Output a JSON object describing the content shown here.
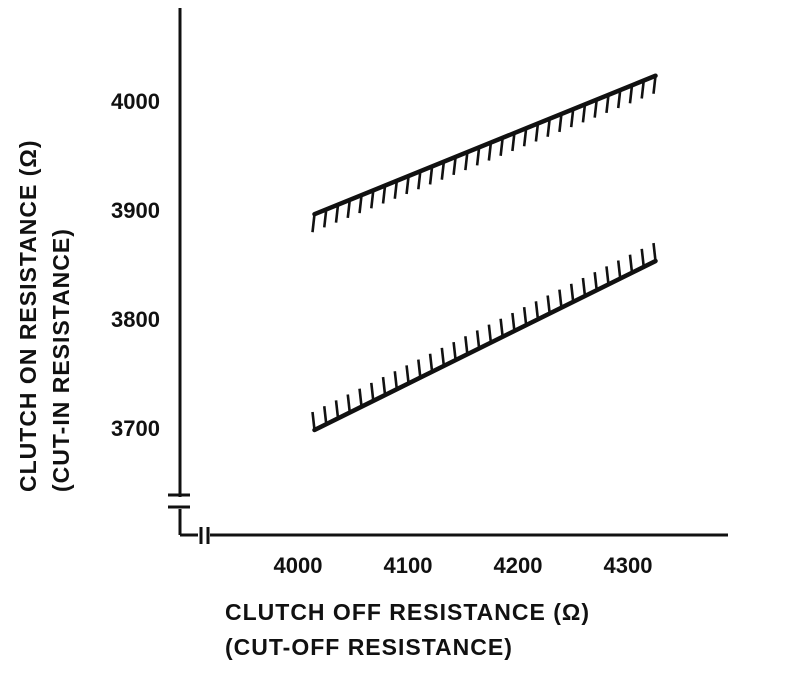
{
  "chart_data": {
    "type": "area",
    "x": [
      4015,
      4325
    ],
    "series": [
      {
        "role": "upper-boundary",
        "hatch_side": "below",
        "values": [
          3898,
          4025
        ]
      },
      {
        "role": "lower-boundary",
        "hatch_side": "above",
        "values": [
          3700,
          3855
        ]
      }
    ],
    "xlabel": "CLUTCH OFF RESISTANCE (Ω)",
    "xlabel_sub": "(CUT-OFF RESISTANCE)",
    "ylabel": "CLUTCH ON RESISTANCE (Ω)",
    "ylabel_sub": "(CUT-IN RESISTANCE)",
    "x_ticks": [
      4000,
      4100,
      4200,
      4300
    ],
    "y_ticks": [
      3700,
      3800,
      3900,
      4000
    ],
    "x_tick_labels": [
      "4000",
      "4100",
      "4200",
      "4300"
    ],
    "y_tick_labels": [
      "3700",
      "3800",
      "3900",
      "4000"
    ],
    "xlim": [
      3920,
      4420
    ],
    "ylim": [
      3630,
      4090
    ],
    "x_axis_break": true,
    "y_axis_break": true,
    "grid": false,
    "colors": {
      "line": "#111111",
      "background": "#ffffff"
    }
  }
}
